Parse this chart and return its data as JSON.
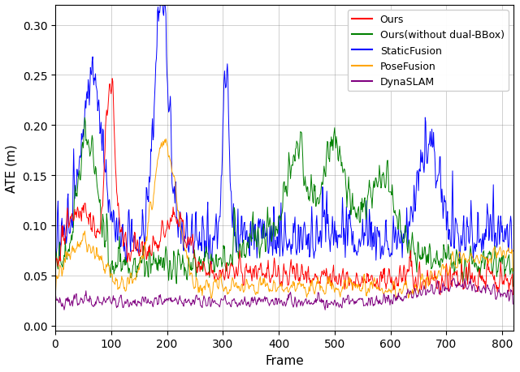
{
  "title": "",
  "xlabel": "Frame",
  "ylabel": "ATE (m)",
  "xlim": [
    0,
    820
  ],
  "ylim": [
    -0.005,
    0.32
  ],
  "yticks": [
    0.0,
    0.05,
    0.1,
    0.15,
    0.2,
    0.25,
    0.3
  ],
  "xticks": [
    0,
    100,
    200,
    300,
    400,
    500,
    600,
    700,
    800
  ],
  "legend": [
    "Ours",
    "Ours(without dual-BBox)",
    "StaticFusion",
    "PoseFusion",
    "DynaSLAM"
  ],
  "colors": {
    "Ours": "#FF0000",
    "Ours(without dual-BBox)": "#008000",
    "StaticFusion": "#0000FF",
    "PoseFusion": "#FFA500",
    "DynaSLAM": "#800080"
  },
  "linewidth": 0.7,
  "grid": true,
  "figsize": [
    6.4,
    4.6
  ],
  "dpi": 100
}
